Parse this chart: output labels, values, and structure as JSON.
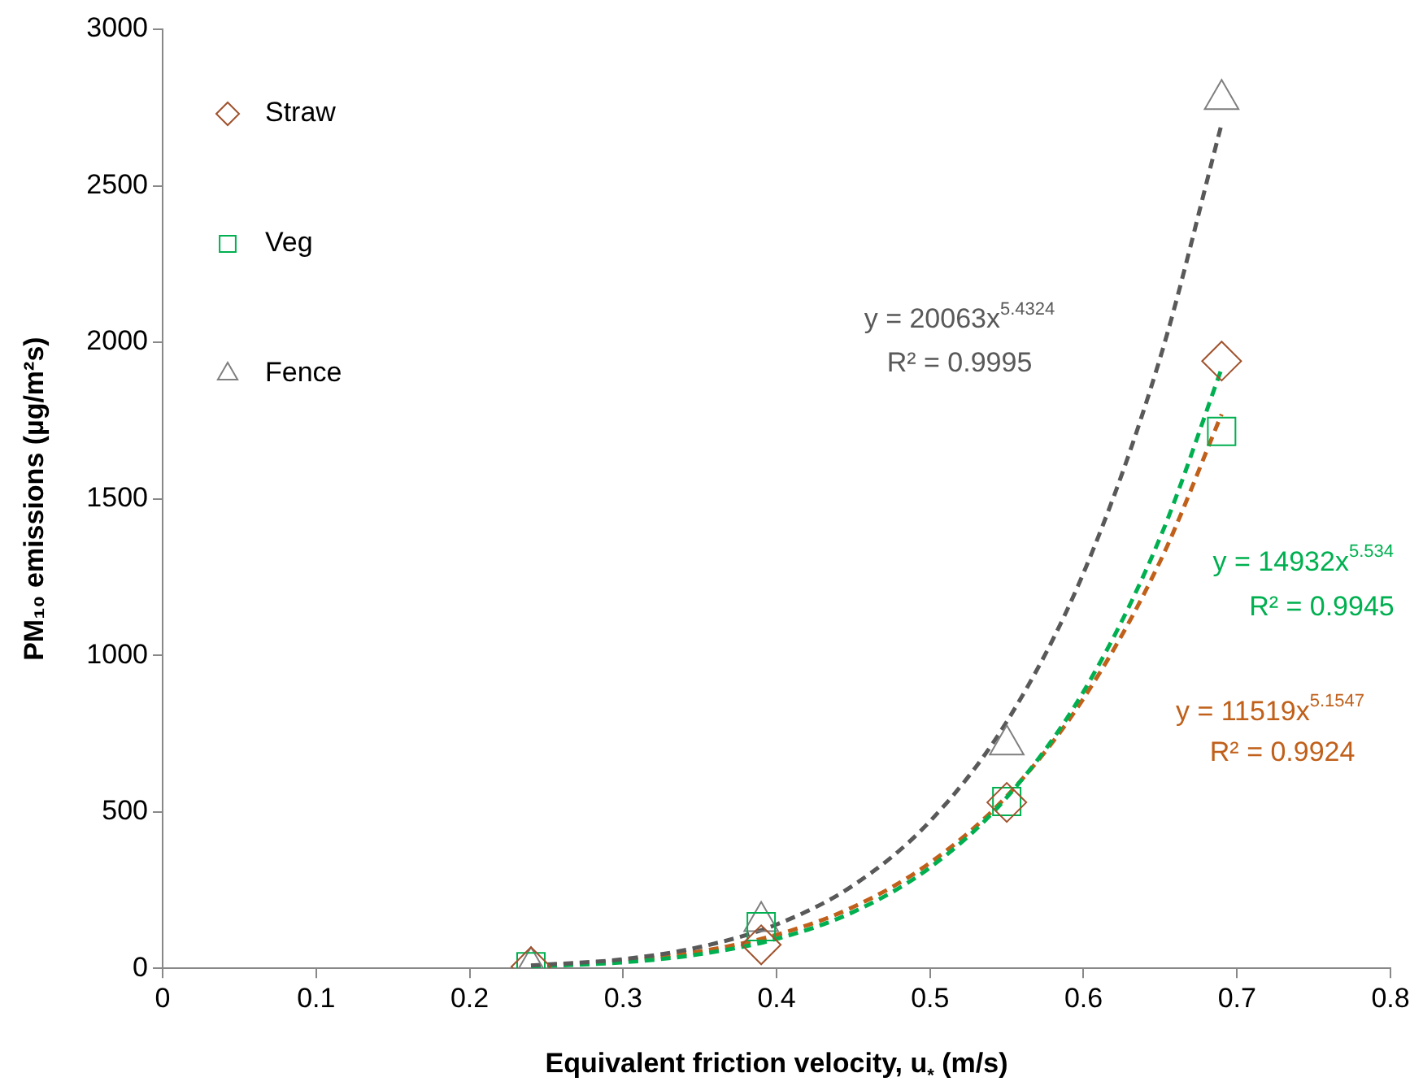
{
  "chart_data": {
    "type": "scatter",
    "xlabel": "Equivalent friction velocity, u$_{*}$ (m/s)",
    "ylabel": "PM₁₀ emissions (µg/m²s)",
    "xlim": [
      0,
      0.8
    ],
    "xticks": [
      0,
      0.1,
      0.2,
      0.3,
      0.4,
      0.5,
      0.6,
      0.7,
      0.8
    ],
    "ylim": [
      0,
      3000
    ],
    "yticks": [
      0,
      500,
      1000,
      1500,
      2000,
      2500,
      3000
    ],
    "legend": "top left",
    "series": [
      {
        "name": "Straw",
        "type": "scatter",
        "marker": "diamond",
        "color": "#a0522d",
        "x": [
          0.24,
          0.39,
          0.55,
          0.69
        ],
        "values": [
          5,
          75,
          530,
          1940
        ]
      },
      {
        "name": "Veg",
        "type": "scatter",
        "marker": "square",
        "color": "#00b050",
        "x": [
          0.24,
          0.39,
          0.55,
          0.69
        ],
        "values": [
          5,
          133,
          533,
          1715
        ]
      },
      {
        "name": "Fence",
        "type": "scatter",
        "marker": "triangle",
        "color": "#7f7f7f",
        "x": [
          0.24,
          0.39,
          0.55,
          0.69
        ],
        "values": [
          5,
          150,
          714,
          2776
        ]
      },
      {
        "type": "line",
        "line_style": "dashed",
        "color": "#595959",
        "x": [
          0.24,
          0.3,
          0.35,
          0.4,
          0.45,
          0.5,
          0.55,
          0.6,
          0.65,
          0.69
        ],
        "values": [
          9,
          29,
          68,
          140,
          265,
          470,
          788,
          1263,
          1951,
          2698
        ]
      },
      {
        "type": "line",
        "line_style": "dashed",
        "color": "#00b050",
        "x": [
          0.24,
          0.3,
          0.35,
          0.4,
          0.45,
          0.5,
          0.55,
          0.6,
          0.65,
          0.69
        ],
        "values": [
          6,
          19,
          45,
          94,
          180,
          322,
          546,
          884,
          1377,
          1916
        ]
      },
      {
        "type": "line",
        "line_style": "dashed",
        "color": "#c0601a",
        "x": [
          0.24,
          0.3,
          0.35,
          0.4,
          0.45,
          0.5,
          0.55,
          0.6,
          0.65,
          0.69
        ],
        "values": [
          8,
          24,
          54,
          107,
          196,
          337,
          550,
          862,
          1301,
          1770
        ]
      }
    ],
    "annotations": [
      "y = 20063x$^{5.4324}$",
      "R² = 0.9995",
      "y = 14932x$^{5.534}$",
      "R² = 0.9945",
      "y = 11519x$^{5.1547}$",
      "R² = 0.9924"
    ]
  }
}
